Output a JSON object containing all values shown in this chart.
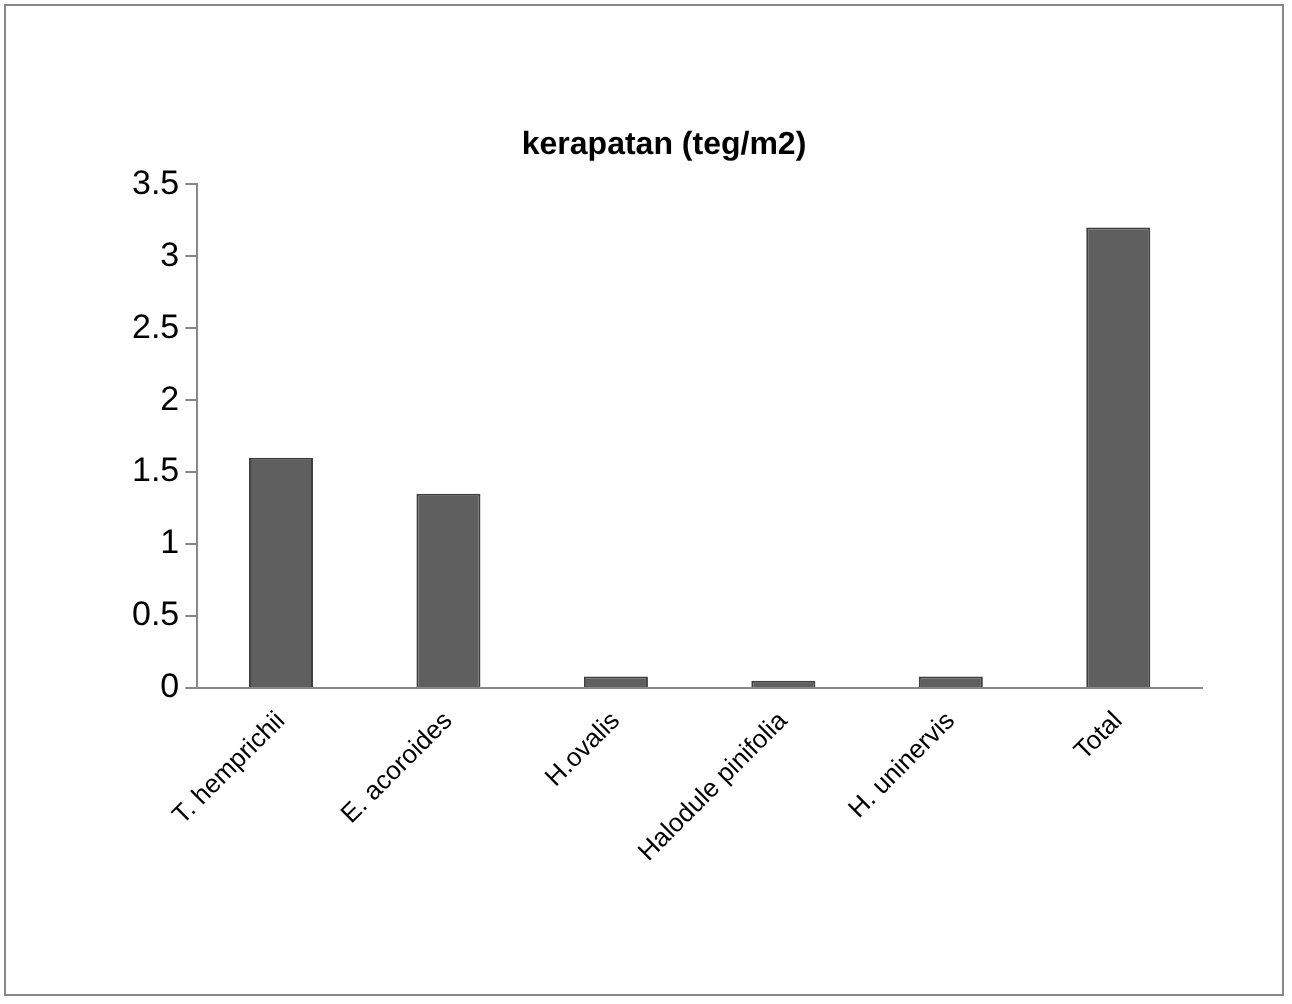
{
  "chart_data": {
    "type": "bar",
    "title": "kerapatan (teg/m2)",
    "categories": [
      "T. hemprichii",
      "E. acoroides",
      "H.ovalis",
      "Halodule pinifolia",
      "H. uninervis",
      "Total"
    ],
    "values": [
      1.6,
      1.35,
      0.08,
      0.05,
      0.08,
      3.2
    ],
    "color": "#5f5f5f",
    "ylim": [
      0,
      3.5
    ],
    "yticks": [
      0,
      0.5,
      1,
      1.5,
      2,
      2.5,
      3,
      3.5
    ],
    "grid": false,
    "legend": false
  }
}
